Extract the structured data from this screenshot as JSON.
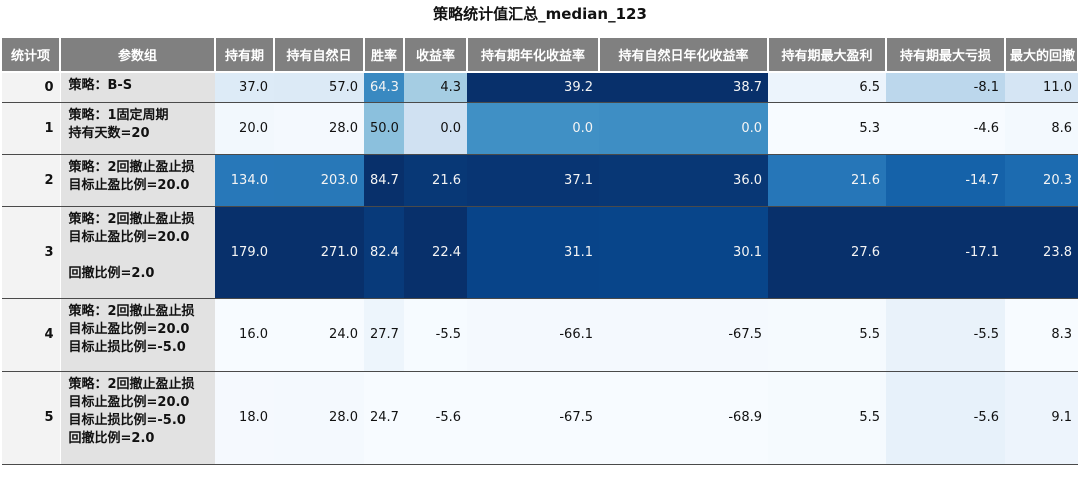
{
  "title": "策略统计值汇总_median_123",
  "chart_data": {
    "type": "table",
    "columns": [
      "统计项",
      "参数组",
      "持有期",
      "持有自然日",
      "胜率",
      "收益率",
      "持有期年化收益率",
      "持有自然日年化收益率",
      "持有期最大盈利",
      "持有期最大亏损",
      "最大的回撤"
    ],
    "rows": [
      {
        "index": "0",
        "param_lines": [
          "策略：B-S"
        ],
        "values": [
          "37.0",
          "57.0",
          "64.3",
          "4.3",
          "39.2",
          "38.7",
          "6.5",
          "-8.1",
          "11.0"
        ]
      },
      {
        "index": "1",
        "param_lines": [
          "策略：1固定周期",
          "持有天数=20"
        ],
        "values": [
          "20.0",
          "28.0",
          "50.0",
          "0.0",
          "0.0",
          "0.0",
          "5.3",
          "-4.6",
          "8.6"
        ]
      },
      {
        "index": "2",
        "param_lines": [
          "策略：2回撤止盈止损",
          "目标止盈比例=20.0"
        ],
        "values": [
          "134.0",
          "203.0",
          "84.7",
          "21.6",
          "37.1",
          "36.0",
          "21.6",
          "-14.7",
          "20.3"
        ]
      },
      {
        "index": "3",
        "param_lines": [
          "策略：2回撤止盈止损",
          "目标止盈比例=20.0",
          "",
          "回撤比例=2.0"
        ],
        "values": [
          "179.0",
          "271.0",
          "82.4",
          "22.4",
          "31.1",
          "30.1",
          "27.6",
          "-17.1",
          "23.8"
        ]
      },
      {
        "index": "4",
        "param_lines": [
          "策略：2回撤止盈止损",
          "目标止盈比例=20.0",
          "目标止损比例=-5.0"
        ],
        "values": [
          "16.0",
          "24.0",
          "27.7",
          "-5.5",
          "-66.1",
          "-67.5",
          "5.5",
          "-5.5",
          "8.3"
        ]
      },
      {
        "index": "5",
        "param_lines": [
          "策略：2回撤止盈止损",
          "目标止盈比例=20.0",
          "目标止损比例=-5.0",
          "回撤比例=2.0"
        ],
        "values": [
          "18.0",
          "28.0",
          "24.7",
          "-5.6",
          "-67.5",
          "-68.9",
          "5.5",
          "-5.6",
          "9.1"
        ]
      }
    ],
    "colormap": "Blues",
    "color_scale_inverted_columns": [
      "持有期最大亏损"
    ]
  }
}
